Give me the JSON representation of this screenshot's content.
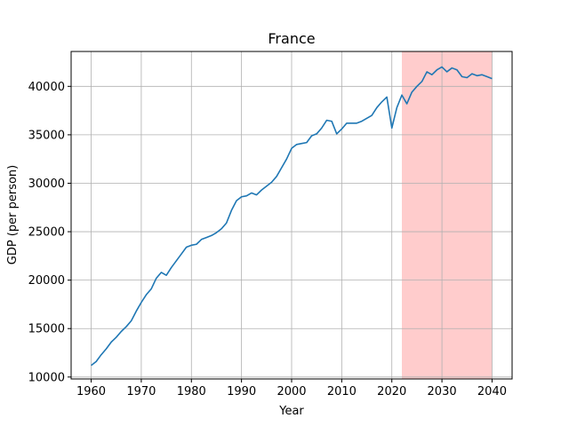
{
  "chart_data": {
    "type": "line",
    "title": "France",
    "xlabel": "Year",
    "ylabel": "GDP (per person)",
    "xlim": [
      1956,
      2044
    ],
    "ylim": [
      9800,
      43600
    ],
    "x_ticks": [
      1960,
      1970,
      1980,
      1990,
      2000,
      2010,
      2020,
      2030,
      2040
    ],
    "y_ticks": [
      10000,
      15000,
      20000,
      25000,
      30000,
      35000,
      40000
    ],
    "grid": true,
    "line_color": "#1f77b4",
    "shaded_region": {
      "x_start": 2022,
      "x_end": 2040,
      "color": "#ff0000",
      "opacity": 0.2
    },
    "series": [
      {
        "x": [
          1960,
          1961,
          1962,
          1963,
          1964,
          1965,
          1966,
          1967,
          1968,
          1969,
          1970,
          1971,
          1972,
          1973,
          1974,
          1975,
          1976,
          1977,
          1978,
          1979,
          1980,
          1981,
          1982,
          1983,
          1984,
          1985,
          1986,
          1987,
          1988,
          1989,
          1990,
          1991,
          1992,
          1993,
          1994,
          1995,
          1996,
          1997,
          1998,
          1999,
          2000,
          2001,
          2002,
          2003,
          2004,
          2005,
          2006,
          2007,
          2008,
          2009,
          2010,
          2011,
          2012,
          2013,
          2014,
          2015,
          2016,
          2017,
          2018,
          2019,
          2020,
          2021,
          2022,
          2023,
          2024,
          2025,
          2026,
          2027,
          2028,
          2029,
          2030,
          2031,
          2032,
          2033,
          2034,
          2035,
          2036,
          2037,
          2038,
          2039,
          2040
        ],
        "values": [
          11200,
          11600,
          12300,
          12900,
          13600,
          14100,
          14700,
          15200,
          15800,
          16800,
          17700,
          18500,
          19100,
          20200,
          20800,
          20500,
          21300,
          22000,
          22700,
          23400,
          23600,
          23700,
          24200,
          24400,
          24600,
          24900,
          25300,
          25900,
          27200,
          28200,
          28600,
          28700,
          29000,
          28800,
          29300,
          29700,
          30100,
          30700,
          31600,
          32500,
          33600,
          34000,
          34100,
          34200,
          34900,
          35100,
          35700,
          36500,
          36400,
          35100,
          35600,
          36200,
          36200,
          36200,
          36400,
          36700,
          37000,
          37800,
          38400,
          38900,
          35700,
          37800,
          39100,
          38200,
          39400,
          40000,
          40500,
          41500,
          41200,
          41700,
          42000,
          41500,
          41900,
          41700,
          41000,
          40900,
          41300,
          41100,
          41200,
          41000,
          40800
        ]
      }
    ]
  }
}
